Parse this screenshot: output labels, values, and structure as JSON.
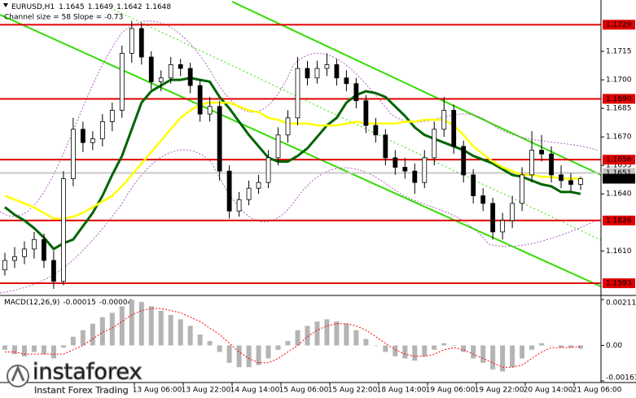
{
  "chart_data": [
    {
      "type": "candlestick",
      "title": "EURUSD,H1",
      "subtitle": "Channel size = 58 Slope = -0.73",
      "x_labels": [
        "13 Aug 06:00",
        "13 Aug 22:00",
        "14 Aug 14:00",
        "15 Aug 06:00",
        "15 Aug 22:00",
        "18 Aug 14:00",
        "19 Aug 06:00",
        "19 Aug 22:00",
        "20 Aug 14:00",
        "21 Aug 06:00"
      ],
      "candles": [
        [
          1.16,
          1.1609,
          1.1597,
          1.1605
        ],
        [
          1.1605,
          1.1612,
          1.1601,
          1.1607
        ],
        [
          1.1607,
          1.1615,
          1.1603,
          1.1611
        ],
        [
          1.1611,
          1.162,
          1.1606,
          1.1616
        ],
        [
          1.1616,
          1.1619,
          1.1601,
          1.1605
        ],
        [
          1.1605,
          1.161,
          1.159,
          1.1594
        ],
        [
          1.1594,
          1.1652,
          1.1592,
          1.1648
        ],
        [
          1.1648,
          1.168,
          1.1644,
          1.1674
        ],
        [
          1.1674,
          1.1678,
          1.1662,
          1.1667
        ],
        [
          1.1667,
          1.1673,
          1.1663,
          1.1669
        ],
        [
          1.1669,
          1.1682,
          1.1665,
          1.1678
        ],
        [
          1.1678,
          1.1688,
          1.1673,
          1.1684
        ],
        [
          1.1684,
          1.1718,
          1.168,
          1.1714
        ],
        [
          1.1714,
          1.1731,
          1.1709,
          1.1727
        ],
        [
          1.1727,
          1.173,
          1.1708,
          1.1712
        ],
        [
          1.1712,
          1.1715,
          1.1695,
          1.1699
        ],
        [
          1.1699,
          1.1705,
          1.1694,
          1.1701
        ],
        [
          1.1701,
          1.1712,
          1.1698,
          1.1708
        ],
        [
          1.1708,
          1.1711,
          1.1702,
          1.1706
        ],
        [
          1.1706,
          1.1709,
          1.1693,
          1.1697
        ],
        [
          1.1697,
          1.17,
          1.1678,
          1.1682
        ],
        [
          1.1682,
          1.1691,
          1.1678,
          1.1686
        ],
        [
          1.1686,
          1.1689,
          1.1647,
          1.1652
        ],
        [
          1.1652,
          1.1655,
          1.1627,
          1.1631
        ],
        [
          1.1631,
          1.1641,
          1.1628,
          1.1637
        ],
        [
          1.1637,
          1.1647,
          1.1634,
          1.1643
        ],
        [
          1.1643,
          1.165,
          1.164,
          1.1646
        ],
        [
          1.1646,
          1.1663,
          1.1643,
          1.1659
        ],
        [
          1.1659,
          1.1675,
          1.1655,
          1.1671
        ],
        [
          1.1671,
          1.1684,
          1.1667,
          1.168
        ],
        [
          1.168,
          1.1712,
          1.1676,
          1.1706
        ],
        [
          1.1706,
          1.171,
          1.1697,
          1.1701
        ],
        [
          1.1701,
          1.171,
          1.1698,
          1.1706
        ],
        [
          1.1706,
          1.1714,
          1.1702,
          1.1708
        ],
        [
          1.1708,
          1.1711,
          1.1697,
          1.1701
        ],
        [
          1.1701,
          1.1705,
          1.1694,
          1.1698
        ],
        [
          1.1698,
          1.1701,
          1.1685,
          1.1689
        ],
        [
          1.1689,
          1.1692,
          1.1672,
          1.1676
        ],
        [
          1.1676,
          1.168,
          1.1667,
          1.1671
        ],
        [
          1.1671,
          1.1674,
          1.1655,
          1.1659
        ],
        [
          1.1659,
          1.1663,
          1.165,
          1.1654
        ],
        [
          1.1654,
          1.1659,
          1.1648,
          1.1652
        ],
        [
          1.1652,
          1.1656,
          1.164,
          1.1646
        ],
        [
          1.1646,
          1.1663,
          1.1643,
          1.1659
        ],
        [
          1.1659,
          1.1678,
          1.1655,
          1.1674
        ],
        [
          1.1674,
          1.1691,
          1.167,
          1.1684
        ],
        [
          1.1684,
          1.1687,
          1.1661,
          1.1665
        ],
        [
          1.1665,
          1.1668,
          1.1646,
          1.165
        ],
        [
          1.165,
          1.1653,
          1.1635,
          1.1639
        ],
        [
          1.1639,
          1.1643,
          1.1631,
          1.1635
        ],
        [
          1.1635,
          1.1638,
          1.1616,
          1.162
        ],
        [
          1.162,
          1.163,
          1.1616,
          1.1626
        ],
        [
          1.1626,
          1.1639,
          1.1622,
          1.1635
        ],
        [
          1.1635,
          1.1654,
          1.1631,
          1.165
        ],
        [
          1.165,
          1.1673,
          1.1646,
          1.1663
        ],
        [
          1.1663,
          1.1671,
          1.1657,
          1.1661
        ],
        [
          1.1661,
          1.1665,
          1.1646,
          1.165
        ],
        [
          1.165,
          1.1655,
          1.1643,
          1.1647
        ],
        [
          1.1647,
          1.1651,
          1.1641,
          1.1645
        ],
        [
          1.1645,
          1.1649,
          1.1642,
          1.1648
        ]
      ],
      "overlays": [
        {
          "color": "#006400",
          "values": [
            1.1633,
            1.1629,
            1.1626,
            1.1622,
            1.1617,
            1.1611,
            1.1614,
            1.1616,
            1.1623,
            1.163,
            1.1639,
            1.165,
            1.166,
            1.1674,
            1.1688,
            1.1694,
            1.1697,
            1.17,
            1.17,
            1.1701,
            1.17,
            1.1699,
            1.1691,
            1.1685,
            1.1678,
            1.1671,
            1.1665,
            1.1659,
            1.1657,
            1.1657,
            1.166,
            1.1664,
            1.167,
            1.1676,
            1.168,
            1.1688,
            1.1692,
            1.1694,
            1.1693,
            1.1691,
            1.1686,
            1.1681,
            1.1675,
            1.1671,
            1.1669,
            1.1667,
            1.1665,
            1.1663,
            1.166,
            1.1658,
            1.1656,
            1.1653,
            1.165,
            1.1649,
            1.1647,
            1.1645,
            1.1644,
            1.1641,
            1.1641,
            1.164
          ]
        },
        {
          "color": "#ffff00",
          "values": [
            1.1639,
            1.1637,
            1.1635,
            1.1633,
            1.163,
            1.1627,
            1.1627,
            1.1628,
            1.163,
            1.1633,
            1.1636,
            1.1639,
            1.1644,
            1.165,
            1.1656,
            1.1662,
            1.1668,
            1.1674,
            1.168,
            1.1684,
            1.1687,
            1.1688,
            1.1688,
            1.1688,
            1.1686,
            1.1684,
            1.1683,
            1.168,
            1.1679,
            1.1677,
            1.1677,
            1.1677,
            1.1676,
            1.1676,
            1.1676,
            1.1677,
            1.1678,
            1.1677,
            1.1677,
            1.1677,
            1.1677,
            1.1678,
            1.1678,
            1.1679,
            1.1679,
            1.1679,
            1.1676,
            1.1671,
            1.1665,
            1.1661,
            1.1657,
            1.1654,
            1.1652,
            1.165,
            1.165,
            1.1649,
            1.1649,
            1.1648,
            1.1648,
            1.1648
          ]
        }
      ],
      "levels": [
        {
          "value": 1.1729,
          "color": "#e00000"
        },
        {
          "value": 1.169,
          "label": "1.1690",
          "color": "#e00000"
        },
        {
          "value": 1.1658,
          "color": "#e00000"
        },
        {
          "value": 1.1626,
          "color": "#e00000"
        },
        {
          "value": 1.1593,
          "color": "#e00000"
        },
        {
          "value": 1.1651,
          "color": "#c8c8c8"
        }
      ],
      "ylim": [
        1.1587,
        1.1742
      ],
      "yticks": [
        1.1715,
        {
          "value": 1.17,
          "label": "1.1700"
        },
        1.1685,
        {
          "value": 1.167,
          "label": "1.1670"
        },
        1.1655,
        {
          "value": 1.164,
          "label": "1.1640"
        },
        {
          "value": 1.161,
          "label": "1.1610"
        }
      ]
    },
    {
      "type": "bar",
      "title": "MACD(12,26,9)",
      "color": "#b4b4b4",
      "values": [
        -0.0002,
        -0.0004,
        -0.0005,
        -0.0003,
        -0.0004,
        -0.0006,
        -0.0001,
        0.0004,
        0.0007,
        0.001,
        0.0013,
        0.0015,
        0.0018,
        0.0021,
        0.002,
        0.0018,
        0.0016,
        0.0014,
        0.0012,
        0.0009,
        0.0005,
        0.0002,
        -0.0003,
        -0.0008,
        -0.001,
        -0.001,
        -0.0009,
        -0.0006,
        -0.0002,
        0.0002,
        0.0007,
        0.0009,
        0.0011,
        0.0012,
        0.0011,
        0.001,
        0.0007,
        0.0003,
        0,
        -0.0003,
        -0.0005,
        -0.0006,
        -0.0007,
        -0.0005,
        -0.0002,
        0.0001,
        0,
        -0.0003,
        -0.0006,
        -0.0008,
        -0.0011,
        -0.0012,
        -0.001,
        -0.0006,
        -0.0002,
        0.0001,
        0,
        -0.0001,
        -0.0001,
        -0.00015
      ],
      "signal": {
        "color": "#ff0000",
        "values": [
          -0.0003,
          -0.0003,
          -0.0004,
          -0.0004,
          -0.0004,
          -0.0004,
          -0.0004,
          -0.0002,
          0,
          0.0003,
          0.0006,
          0.0008,
          0.0011,
          0.0014,
          0.0016,
          0.0017,
          0.0017,
          0.0016,
          0.0015,
          0.0013,
          0.0011,
          0.0008,
          0.0005,
          0.0001,
          -0.0003,
          -0.0006,
          -0.0008,
          -0.0008,
          -0.0006,
          -0.0003,
          0,
          0.0004,
          0.0007,
          0.0009,
          0.001,
          0.001,
          0.0009,
          0.0007,
          0.0004,
          0.0001,
          -0.0002,
          -0.0004,
          -0.0005,
          -0.0005,
          -0.0004,
          -0.0002,
          -0.0001,
          -0.0002,
          -0.0004,
          -0.0006,
          -0.0008,
          -0.001,
          -0.001,
          -0.0009,
          -0.0006,
          -0.0003,
          -0.0001,
          -0.0001,
          -0.0001,
          -4e-05
        ]
      },
      "ylim": [
        -0.00163,
        0.00211
      ],
      "yticks": [
        0.00211,
        {
          "value": 0,
          "label": "0.00"
        },
        -0.00163
      ]
    }
  ],
  "watermark": {
    "brand": "instaforex",
    "tagline": "Instant Forex Trading"
  }
}
